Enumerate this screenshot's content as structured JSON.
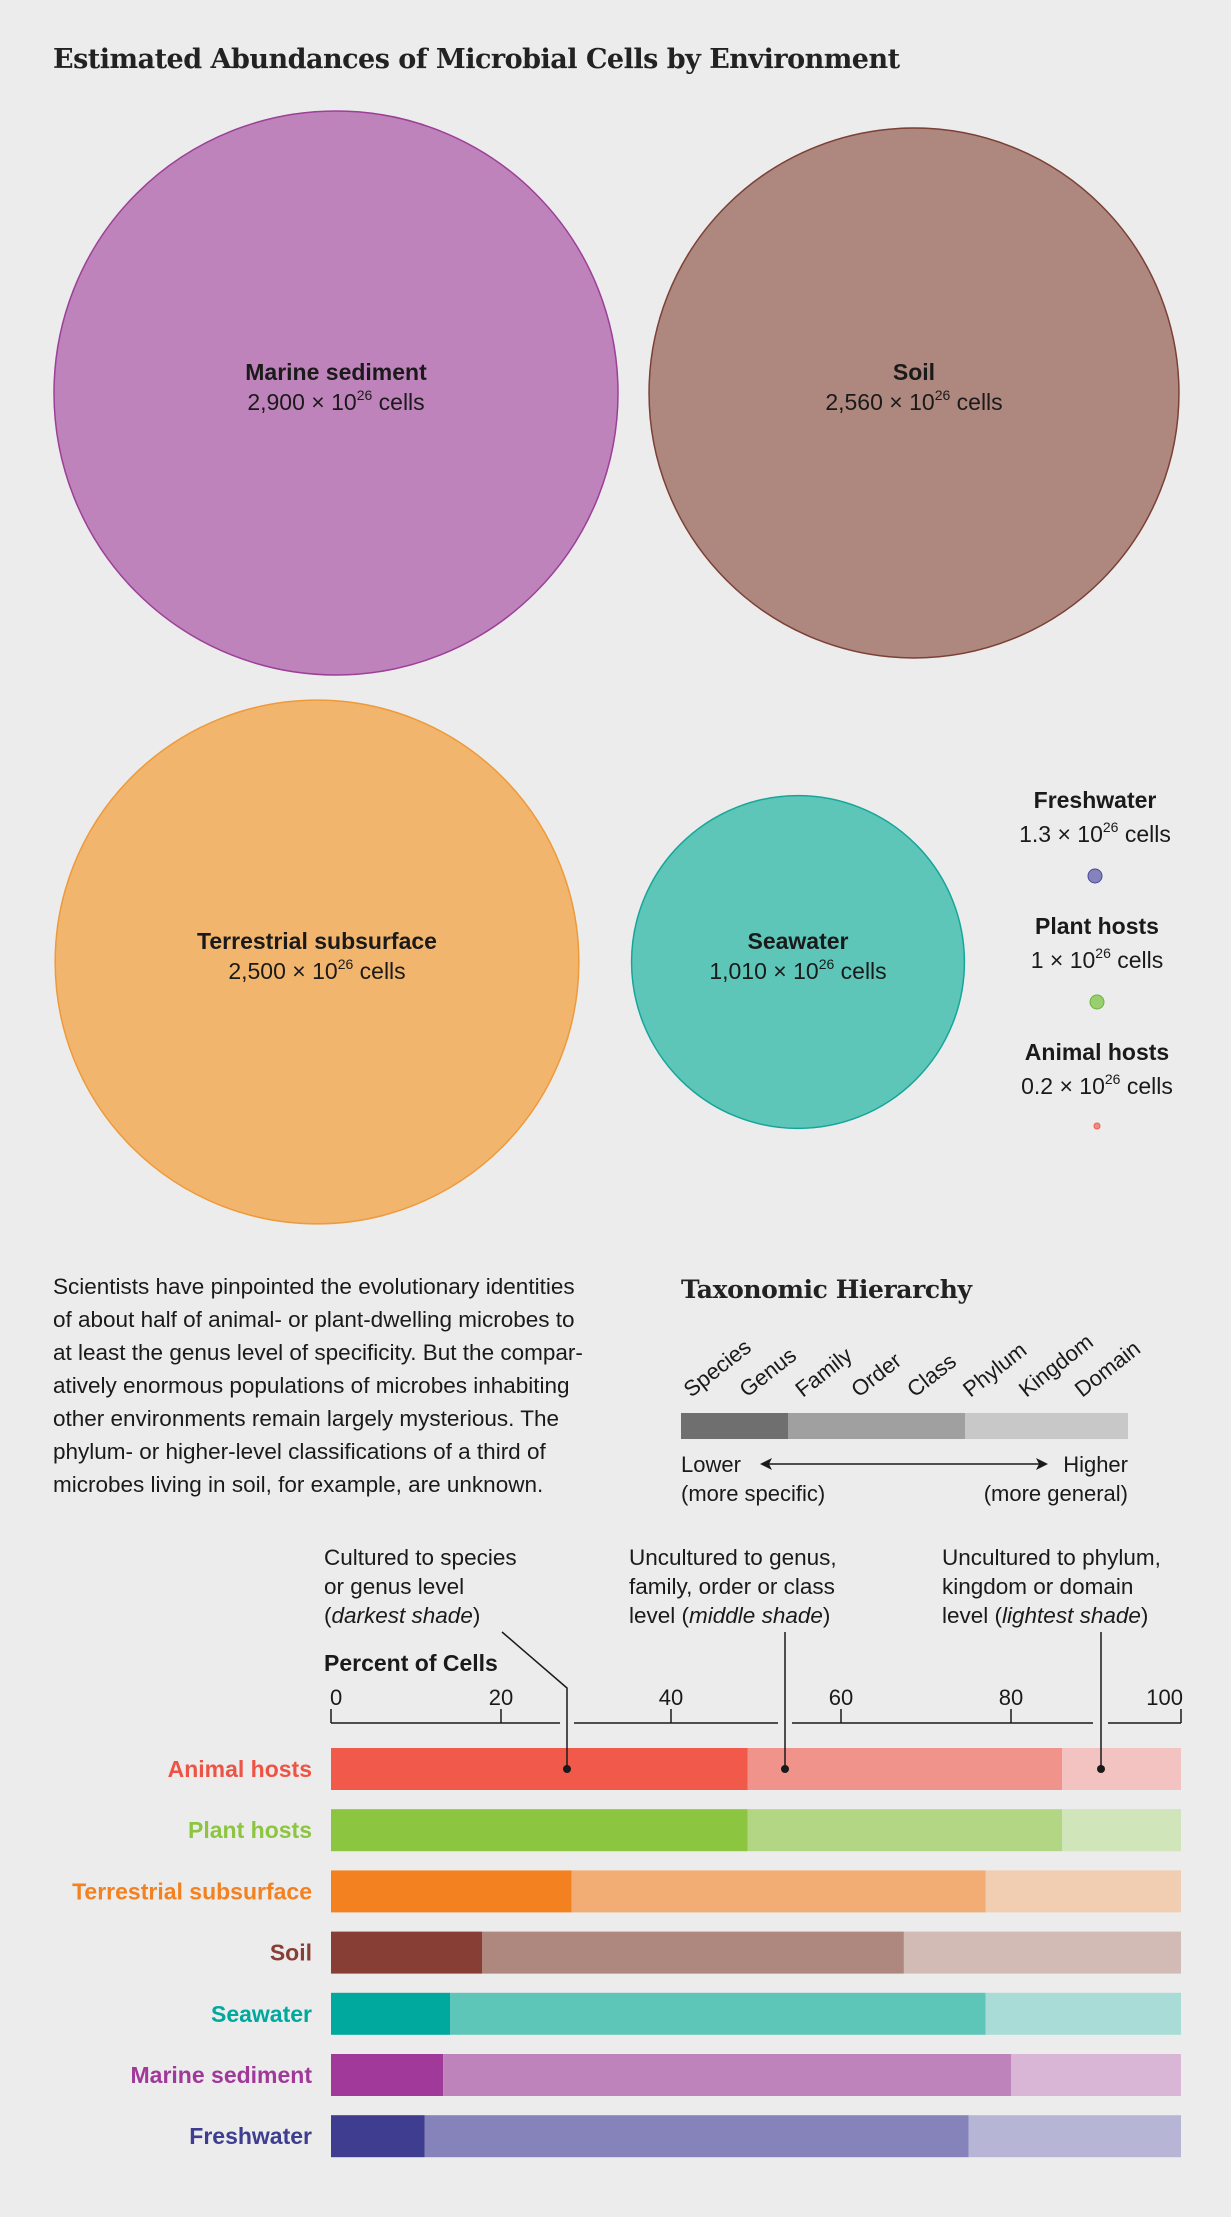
{
  "title": "Estimated Abundances of Microbial Cells by Environment",
  "bubble_unit_prefix": "× 10",
  "bubble_unit_exponent": "26",
  "bubble_unit_suffix": "cells",
  "bubbles": [
    {
      "name": "Marine sediment",
      "value": 2900,
      "value_label": "2,900",
      "color": "#bf83bb",
      "stroke": "#9c3f98"
    },
    {
      "name": "Soil",
      "value": 2560,
      "value_label": "2,560",
      "color": "#ae877e",
      "stroke": "#7b4036"
    },
    {
      "name": "Terrestrial subsurface",
      "value": 2500,
      "value_label": "2,500",
      "color": "#f2b56e",
      "stroke": "#ee9a3a"
    },
    {
      "name": "Seawater",
      "value": 1010,
      "value_label": "1,010",
      "color": "#5ec6b9",
      "stroke": "#16a699"
    },
    {
      "name": "Freshwater",
      "value": 1.3,
      "value_label": "1.3",
      "color": "#8483bc",
      "stroke": "#4a479a"
    },
    {
      "name": "Plant hosts",
      "value": 1,
      "value_label": "1",
      "color": "#98d070",
      "stroke": "#6fb03c"
    },
    {
      "name": "Animal hosts",
      "value": 0.2,
      "value_label": "0.2",
      "color": "#f28a80",
      "stroke": "#ee5b4c"
    }
  ],
  "description": "Scientists have pinpointed the evolutionary identities of about half of animal- or plant-dwelling microbes to at least the genus level of specificity. But the comparatively enormous populations of microbes inhabiting other environments remain largely mysterious. The phylum- or higher-level classifications of a third of microbes living in soil, for example, are unknown.",
  "description_lines": [
    "Scientists have pinpointed the evolutionary identities",
    "of about half of animal- or plant-dwelling microbes to",
    "at least the genus level of specificity. But the compar-",
    "atively enormous populations of microbes inhabiting",
    "other environments remain largely mysterious. The",
    "phylum- or higher-level classifications of a third of",
    "microbes living in soil, for example, are unknown."
  ],
  "taxonomy": {
    "title": "Taxonomic Hierarchy",
    "ranks": [
      "Species",
      "Genus",
      "Family",
      "Order",
      "Class",
      "Phylum",
      "Kingdom",
      "Domain"
    ],
    "lower_label": "Lower",
    "lower_sub": "(more specific)",
    "higher_label": "Higher",
    "higher_sub": "(more general)",
    "shade_colors": [
      "#6f6f6f",
      "#a0a0a0",
      "#c8c8c8"
    ]
  },
  "callouts": [
    {
      "lines": [
        "Cultured to species",
        "or genus level"
      ],
      "paren_open": "(",
      "italic": "darkest shade",
      "paren_close": ")"
    },
    {
      "lines": [
        "Uncultured to genus,",
        "family, order or class"
      ],
      "prefix": "level (",
      "italic": "middle shade",
      "paren_close": ")"
    },
    {
      "lines": [
        "Uncultured to phylum,",
        "kingdom or domain"
      ],
      "prefix": "level (",
      "italic": "lightest shade",
      "paren_close": ")"
    }
  ],
  "chart_data": {
    "type": "bar",
    "orientation": "horizontal-stacked",
    "xlabel": "Percent of Cells",
    "xlim": [
      0,
      100
    ],
    "xticks": [
      0,
      20,
      40,
      60,
      80,
      100
    ],
    "categories": [
      "Animal hosts",
      "Plant hosts",
      "Terrestrial subsurface",
      "Soil",
      "Seawater",
      "Marine sediment",
      "Freshwater"
    ],
    "segments": [
      "Cultured to species or genus level",
      "Uncultured to genus, family, order or class level",
      "Uncultured to phylum, kingdom or domain level"
    ],
    "rows": [
      {
        "name": "Animal hosts",
        "values": [
          49,
          37,
          14
        ],
        "colors": [
          "#f15a4b",
          "#f0938a",
          "#f2c3c0"
        ],
        "label_color": "#ee5445"
      },
      {
        "name": "Plant hosts",
        "values": [
          49,
          37,
          14
        ],
        "colors": [
          "#8cc53f",
          "#b3d685",
          "#d1e5bb"
        ],
        "label_color": "#8cc53f"
      },
      {
        "name": "Terrestrial subsurface",
        "values": [
          28.3,
          48.7,
          23
        ],
        "colors": [
          "#f48120",
          "#f2ad74",
          "#f1cdb1"
        ],
        "label_color": "#f48120"
      },
      {
        "name": "Soil",
        "values": [
          17.8,
          49.6,
          32.6
        ],
        "colors": [
          "#873f35",
          "#ae877e",
          "#d2bab5"
        ],
        "label_color": "#873f35"
      },
      {
        "name": "Seawater",
        "values": [
          14,
          63,
          23
        ],
        "colors": [
          "#00a99d",
          "#5ec6b9",
          "#a9dcd6"
        ],
        "label_color": "#00a99d"
      },
      {
        "name": "Marine sediment",
        "values": [
          13.2,
          66.8,
          20
        ],
        "colors": [
          "#a0399a",
          "#bf83bb",
          "#d9b5d6"
        ],
        "label_color": "#a0399a"
      },
      {
        "name": "Freshwater",
        "values": [
          11,
          64,
          25
        ],
        "colors": [
          "#3f3d90",
          "#8683bb",
          "#b7b5d6"
        ],
        "label_color": "#3f3d90"
      }
    ]
  }
}
